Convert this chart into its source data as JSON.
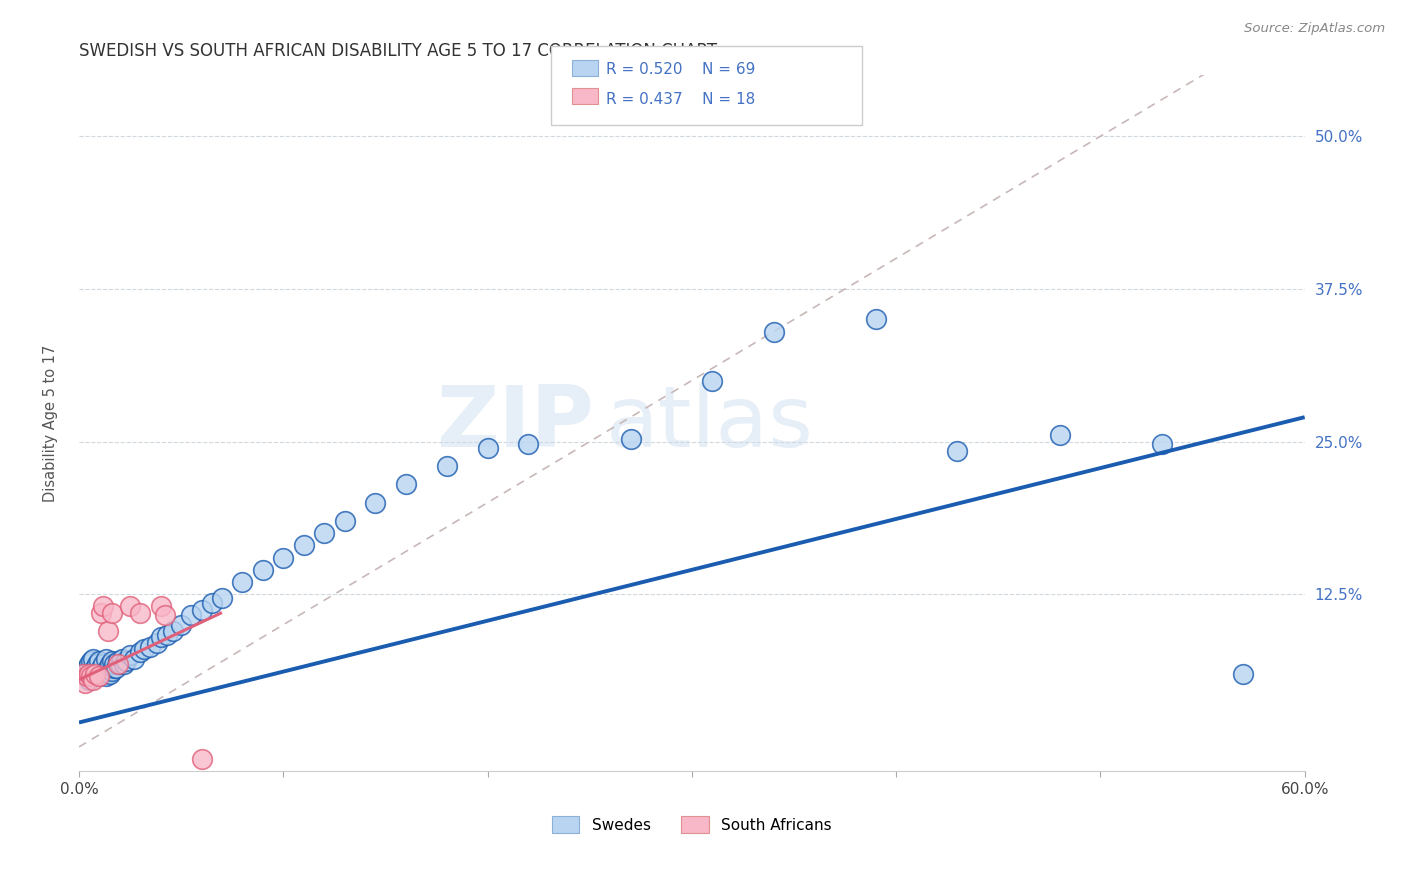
{
  "title": "SWEDISH VS SOUTH AFRICAN DISABILITY AGE 5 TO 17 CORRELATION CHART",
  "source_text": "Source: ZipAtlas.com",
  "ylabel": "Disability Age 5 to 17",
  "xlim": [
    0.0,
    0.6
  ],
  "ylim": [
    -0.02,
    0.55
  ],
  "xticks": [
    0.0,
    0.1,
    0.2,
    0.3,
    0.4,
    0.5,
    0.6
  ],
  "xticklabels": [
    "0.0%",
    "",
    "",
    "",
    "",
    "",
    "60.0%"
  ],
  "yticks": [
    0.0,
    0.125,
    0.25,
    0.375,
    0.5
  ],
  "yticklabels": [
    "",
    "12.5%",
    "25.0%",
    "37.5%",
    "50.0%"
  ],
  "r_swedes": 0.52,
  "n_swedes": 69,
  "r_sa": 0.437,
  "n_sa": 18,
  "color_swedes": "#b8d4f0",
  "color_swedes_line": "#1a5cb0",
  "color_sa": "#f8b8c8",
  "color_sa_line": "#e0607a",
  "color_ref_line": "#c8b8b8",
  "watermark_zip": "ZIP",
  "watermark_atlas": "atlas",
  "title_fontsize": 12,
  "swedes_x": [
    0.002,
    0.003,
    0.004,
    0.004,
    0.005,
    0.005,
    0.006,
    0.006,
    0.007,
    0.007,
    0.008,
    0.008,
    0.009,
    0.009,
    0.01,
    0.01,
    0.011,
    0.011,
    0.012,
    0.012,
    0.013,
    0.013,
    0.014,
    0.014,
    0.015,
    0.015,
    0.016,
    0.016,
    0.017,
    0.017,
    0.018,
    0.019,
    0.02,
    0.021,
    0.022,
    0.023,
    0.025,
    0.027,
    0.03,
    0.032,
    0.035,
    0.038,
    0.04,
    0.043,
    0.046,
    0.05,
    0.055,
    0.06,
    0.065,
    0.07,
    0.08,
    0.09,
    0.1,
    0.11,
    0.12,
    0.13,
    0.145,
    0.16,
    0.18,
    0.2,
    0.22,
    0.27,
    0.31,
    0.34,
    0.39,
    0.43,
    0.48,
    0.53,
    0.57
  ],
  "swedes_y": [
    0.06,
    0.062,
    0.058,
    0.065,
    0.055,
    0.068,
    0.06,
    0.07,
    0.058,
    0.072,
    0.062,
    0.065,
    0.06,
    0.068,
    0.058,
    0.07,
    0.062,
    0.065,
    0.06,
    0.068,
    0.058,
    0.072,
    0.062,
    0.065,
    0.06,
    0.068,
    0.062,
    0.07,
    0.065,
    0.068,
    0.065,
    0.07,
    0.068,
    0.072,
    0.068,
    0.07,
    0.075,
    0.072,
    0.078,
    0.08,
    0.082,
    0.085,
    0.09,
    0.092,
    0.095,
    0.1,
    0.108,
    0.112,
    0.118,
    0.122,
    0.135,
    0.145,
    0.155,
    0.165,
    0.175,
    0.185,
    0.2,
    0.215,
    0.23,
    0.245,
    0.248,
    0.252,
    0.3,
    0.34,
    0.35,
    0.242,
    0.255,
    0.248,
    0.06
  ],
  "sa_x": [
    0.002,
    0.003,
    0.004,
    0.005,
    0.006,
    0.007,
    0.008,
    0.01,
    0.011,
    0.012,
    0.014,
    0.016,
    0.019,
    0.025,
    0.03,
    0.04,
    0.042,
    0.06
  ],
  "sa_y": [
    0.06,
    0.052,
    0.058,
    0.06,
    0.058,
    0.055,
    0.06,
    0.058,
    0.11,
    0.115,
    0.095,
    0.11,
    0.068,
    0.115,
    0.11,
    0.115,
    0.108,
    -0.01
  ],
  "swedes_trend_x0": 0.0,
  "swedes_trend_y0": 0.02,
  "swedes_trend_x1": 0.6,
  "swedes_trend_y1": 0.27,
  "sa_trend_x0": 0.0,
  "sa_trend_y0": 0.055,
  "sa_trend_x1": 0.07,
  "sa_trend_y1": 0.11
}
